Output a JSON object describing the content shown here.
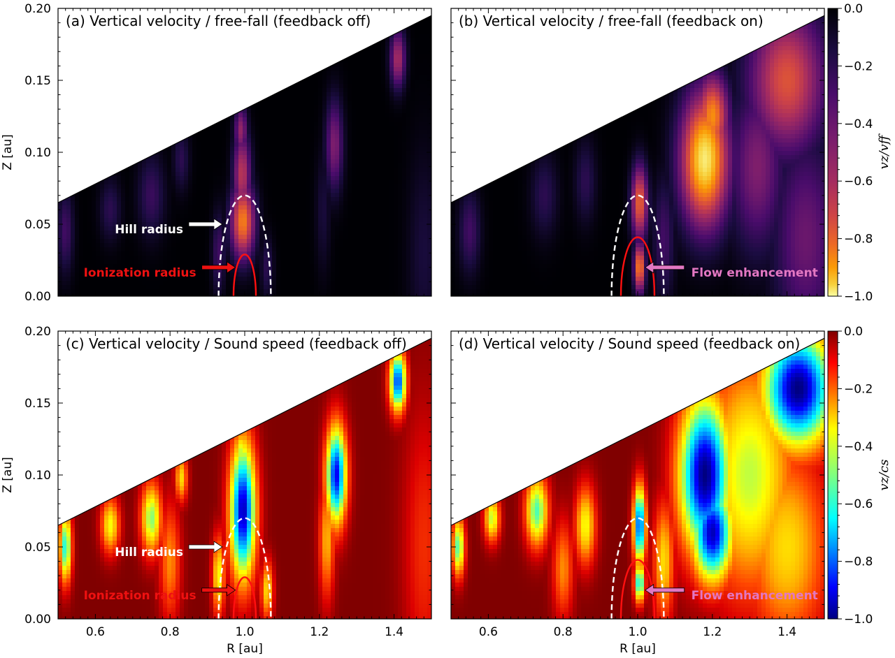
{
  "chart_data": [
    {
      "type": "heatmap",
      "title": "(a) Vertical velocity / free-fall (feedback off)",
      "xlabel": "",
      "ylabel": "Z [au]",
      "xlim": [
        0.5,
        1.5
      ],
      "ylim": [
        0.0,
        0.2
      ],
      "xticks": [],
      "yticks": [
        "0.00",
        "0.05",
        "0.10",
        "0.15",
        "0.20"
      ],
      "colormap": "inferno",
      "surface_edge": {
        "x": [
          0.5,
          1.5
        ],
        "z": [
          0.065,
          0.195
        ]
      },
      "hill_radius": {
        "center_r": 1.0,
        "half_width": 0.07,
        "height": 0.07
      },
      "ionization_radius": {
        "center_r": 1.0,
        "half_width": 0.03,
        "height": 0.029
      },
      "annotations": [
        {
          "text": "Hill radius",
          "color": "#ffffff",
          "tip_r": 0.94,
          "tip_z": 0.05,
          "side": "left"
        },
        {
          "text": "Ionization radius",
          "color": "#ee1111",
          "tip_r": 0.975,
          "tip_z": 0.02,
          "side": "left"
        }
      ],
      "blobs": [
        {
          "r": 0.995,
          "z": 0.052,
          "sr": 0.022,
          "sz": 0.018,
          "v": 0.72
        },
        {
          "r": 0.993,
          "z": 0.085,
          "sr": 0.016,
          "sz": 0.02,
          "v": 0.5
        },
        {
          "r": 0.99,
          "z": 0.115,
          "sr": 0.012,
          "sz": 0.012,
          "v": 0.4
        },
        {
          "r": 1.24,
          "z": 0.105,
          "sr": 0.016,
          "sz": 0.022,
          "v": 0.35
        },
        {
          "r": 1.21,
          "z": 0.06,
          "sr": 0.014,
          "sz": 0.03,
          "v": 0.1
        },
        {
          "r": 1.41,
          "z": 0.165,
          "sr": 0.014,
          "sz": 0.014,
          "v": 0.45
        },
        {
          "r": 0.75,
          "z": 0.07,
          "sr": 0.025,
          "sz": 0.02,
          "v": 0.18
        },
        {
          "r": 0.64,
          "z": 0.06,
          "sr": 0.02,
          "sz": 0.015,
          "v": 0.15
        },
        {
          "r": 0.52,
          "z": 0.045,
          "sr": 0.015,
          "sz": 0.02,
          "v": 0.2
        },
        {
          "r": 0.83,
          "z": 0.095,
          "sr": 0.015,
          "sz": 0.015,
          "v": 0.15
        },
        {
          "r": 0.93,
          "z": 0.03,
          "sr": 0.012,
          "sz": 0.02,
          "v": 0.2
        },
        {
          "r": 1.06,
          "z": 0.02,
          "sr": 0.012,
          "sz": 0.015,
          "v": 0.15
        },
        {
          "r": 1.48,
          "z": 0.03,
          "sr": 0.03,
          "sz": 0.05,
          "v": 0.1
        }
      ]
    },
    {
      "type": "heatmap",
      "title": "(b) Vertical velocity / free-fall (feedback on)",
      "xlabel": "",
      "ylabel": "",
      "xlim": [
        0.5,
        1.5
      ],
      "ylim": [
        0.0,
        0.2
      ],
      "xticks": [],
      "yticks": [],
      "colormap": "inferno",
      "colorbar": {
        "label": "vz/vff",
        "ticks": [
          "0.0",
          "−0.2",
          "−0.4",
          "−0.6",
          "−0.8",
          "−1.0"
        ],
        "range": [
          0.0,
          -1.0
        ]
      },
      "surface_edge": {
        "x": [
          0.5,
          1.5
        ],
        "z": [
          0.065,
          0.195
        ]
      },
      "hill_radius": {
        "center_r": 1.0,
        "half_width": 0.07,
        "height": 0.07
      },
      "ionization_radius": {
        "center_r": 1.0,
        "half_width": 0.045,
        "height": 0.041
      },
      "annotations": [
        {
          "text": "Flow enhancement",
          "color": "#e377c2",
          "tip_r": 1.02,
          "tip_z": 0.02,
          "side": "right"
        }
      ],
      "blobs": [
        {
          "r": 1.18,
          "z": 0.095,
          "sr": 0.045,
          "sz": 0.032,
          "v": 0.95
        },
        {
          "r": 1.2,
          "z": 0.125,
          "sr": 0.03,
          "sz": 0.02,
          "v": 0.75
        },
        {
          "r": 1.4,
          "z": 0.15,
          "sr": 0.07,
          "sz": 0.035,
          "v": 0.6
        },
        {
          "r": 1.32,
          "z": 0.09,
          "sr": 0.05,
          "sz": 0.04,
          "v": 0.35
        },
        {
          "r": 1.45,
          "z": 0.04,
          "sr": 0.06,
          "sz": 0.05,
          "v": 0.3
        },
        {
          "r": 1.005,
          "z": 0.065,
          "sr": 0.015,
          "sz": 0.018,
          "v": 0.65
        },
        {
          "r": 1.005,
          "z": 0.02,
          "sr": 0.01,
          "sz": 0.012,
          "v": 0.75
        },
        {
          "r": 0.75,
          "z": 0.07,
          "sr": 0.025,
          "sz": 0.02,
          "v": 0.15
        },
        {
          "r": 0.55,
          "z": 0.045,
          "sr": 0.02,
          "sz": 0.02,
          "v": 0.2
        },
        {
          "r": 0.86,
          "z": 0.08,
          "sr": 0.02,
          "sz": 0.02,
          "v": 0.15
        },
        {
          "r": 1.07,
          "z": 0.04,
          "sr": 0.02,
          "sz": 0.03,
          "v": 0.2
        }
      ]
    },
    {
      "type": "heatmap",
      "title": "(c) Vertical velocity / Sound speed (feedback off)",
      "xlabel": "R [au]",
      "ylabel": "Z [au]",
      "xlim": [
        0.5,
        1.5
      ],
      "ylim": [
        0.0,
        0.2
      ],
      "xticks": [
        "0.6",
        "0.8",
        "1.0",
        "1.2",
        "1.4"
      ],
      "yticks": [
        "0.00",
        "0.05",
        "0.10",
        "0.15",
        "0.20"
      ],
      "colormap": "jet",
      "surface_edge": {
        "x": [
          0.5,
          1.5
        ],
        "z": [
          0.065,
          0.195
        ]
      },
      "hill_radius": {
        "center_r": 1.0,
        "half_width": 0.07,
        "height": 0.07
      },
      "ionization_radius": {
        "center_r": 1.0,
        "half_width": 0.03,
        "height": 0.029
      },
      "annotations": [
        {
          "text": "Hill radius",
          "color": "#ffffff",
          "tip_r": 0.94,
          "tip_z": 0.05,
          "side": "left"
        },
        {
          "text": "Ionization radius",
          "color": "#ee1111",
          "tip_r": 0.975,
          "tip_z": 0.02,
          "side": "left"
        }
      ],
      "blobs": [
        {
          "r": 0.995,
          "z": 0.075,
          "sr": 0.025,
          "sz": 0.035,
          "v": 0.95
        },
        {
          "r": 0.99,
          "z": 0.115,
          "sr": 0.015,
          "sz": 0.012,
          "v": 0.5
        },
        {
          "r": 1.245,
          "z": 0.1,
          "sr": 0.02,
          "sz": 0.025,
          "v": 0.9
        },
        {
          "r": 1.22,
          "z": 0.055,
          "sr": 0.015,
          "sz": 0.03,
          "v": 0.35
        },
        {
          "r": 1.41,
          "z": 0.165,
          "sr": 0.016,
          "sz": 0.015,
          "v": 0.85
        },
        {
          "r": 0.75,
          "z": 0.07,
          "sr": 0.02,
          "sz": 0.018,
          "v": 0.55
        },
        {
          "r": 0.64,
          "z": 0.065,
          "sr": 0.018,
          "sz": 0.014,
          "v": 0.45
        },
        {
          "r": 0.52,
          "z": 0.05,
          "sr": 0.012,
          "sz": 0.018,
          "v": 0.65
        },
        {
          "r": 0.8,
          "z": 0.04,
          "sr": 0.02,
          "sz": 0.03,
          "v": 0.3
        },
        {
          "r": 0.83,
          "z": 0.098,
          "sr": 0.012,
          "sz": 0.012,
          "v": 0.4
        },
        {
          "r": 0.93,
          "z": 0.03,
          "sr": 0.012,
          "sz": 0.02,
          "v": 0.45
        },
        {
          "r": 1.06,
          "z": 0.02,
          "sr": 0.012,
          "sz": 0.015,
          "v": 0.4
        },
        {
          "r": 1.48,
          "z": 0.05,
          "sr": 0.04,
          "sz": 0.07,
          "v": 0.18
        }
      ]
    },
    {
      "type": "heatmap",
      "title": "(d) Vertical velocity / Sound speed (feedback on)",
      "xlabel": "R [au]",
      "ylabel": "",
      "xlim": [
        0.5,
        1.5
      ],
      "ylim": [
        0.0,
        0.2
      ],
      "xticks": [
        "0.6",
        "0.8",
        "1.0",
        "1.2",
        "1.4"
      ],
      "yticks": [],
      "colormap": "jet",
      "colorbar": {
        "label": "vz/cs",
        "ticks": [
          "0.0",
          "−0.2",
          "−0.4",
          "−0.6",
          "−0.8",
          "−1.0"
        ],
        "range": [
          0.0,
          -1.0
        ]
      },
      "surface_edge": {
        "x": [
          0.5,
          1.5
        ],
        "z": [
          0.065,
          0.195
        ]
      },
      "hill_radius": {
        "center_r": 1.0,
        "half_width": 0.07,
        "height": 0.07
      },
      "ionization_radius": {
        "center_r": 1.0,
        "half_width": 0.045,
        "height": 0.041
      },
      "annotations": [
        {
          "text": "Flow enhancement",
          "color": "#e377c2",
          "tip_r": 1.02,
          "tip_z": 0.02,
          "side": "right"
        }
      ],
      "blobs": [
        {
          "r": 1.18,
          "z": 0.1,
          "sr": 0.05,
          "sz": 0.04,
          "v": 1.0
        },
        {
          "r": 1.2,
          "z": 0.06,
          "sr": 0.04,
          "sz": 0.025,
          "v": 0.95
        },
        {
          "r": 1.43,
          "z": 0.16,
          "sr": 0.07,
          "sz": 0.03,
          "v": 1.0
        },
        {
          "r": 1.3,
          "z": 0.1,
          "sr": 0.09,
          "sz": 0.06,
          "v": 0.5
        },
        {
          "r": 1.4,
          "z": 0.05,
          "sr": 0.08,
          "sz": 0.05,
          "v": 0.4
        },
        {
          "r": 1.005,
          "z": 0.065,
          "sr": 0.012,
          "sz": 0.02,
          "v": 0.85
        },
        {
          "r": 1.005,
          "z": 0.025,
          "sr": 0.01,
          "sz": 0.01,
          "v": 0.7
        },
        {
          "r": 0.73,
          "z": 0.075,
          "sr": 0.022,
          "sz": 0.018,
          "v": 0.6
        },
        {
          "r": 0.61,
          "z": 0.07,
          "sr": 0.015,
          "sz": 0.012,
          "v": 0.5
        },
        {
          "r": 0.52,
          "z": 0.05,
          "sr": 0.012,
          "sz": 0.015,
          "v": 0.6
        },
        {
          "r": 0.86,
          "z": 0.065,
          "sr": 0.02,
          "sz": 0.02,
          "v": 0.45
        },
        {
          "r": 0.8,
          "z": 0.035,
          "sr": 0.02,
          "sz": 0.025,
          "v": 0.3
        },
        {
          "r": 1.07,
          "z": 0.04,
          "sr": 0.02,
          "sz": 0.03,
          "v": 0.4
        }
      ]
    }
  ]
}
